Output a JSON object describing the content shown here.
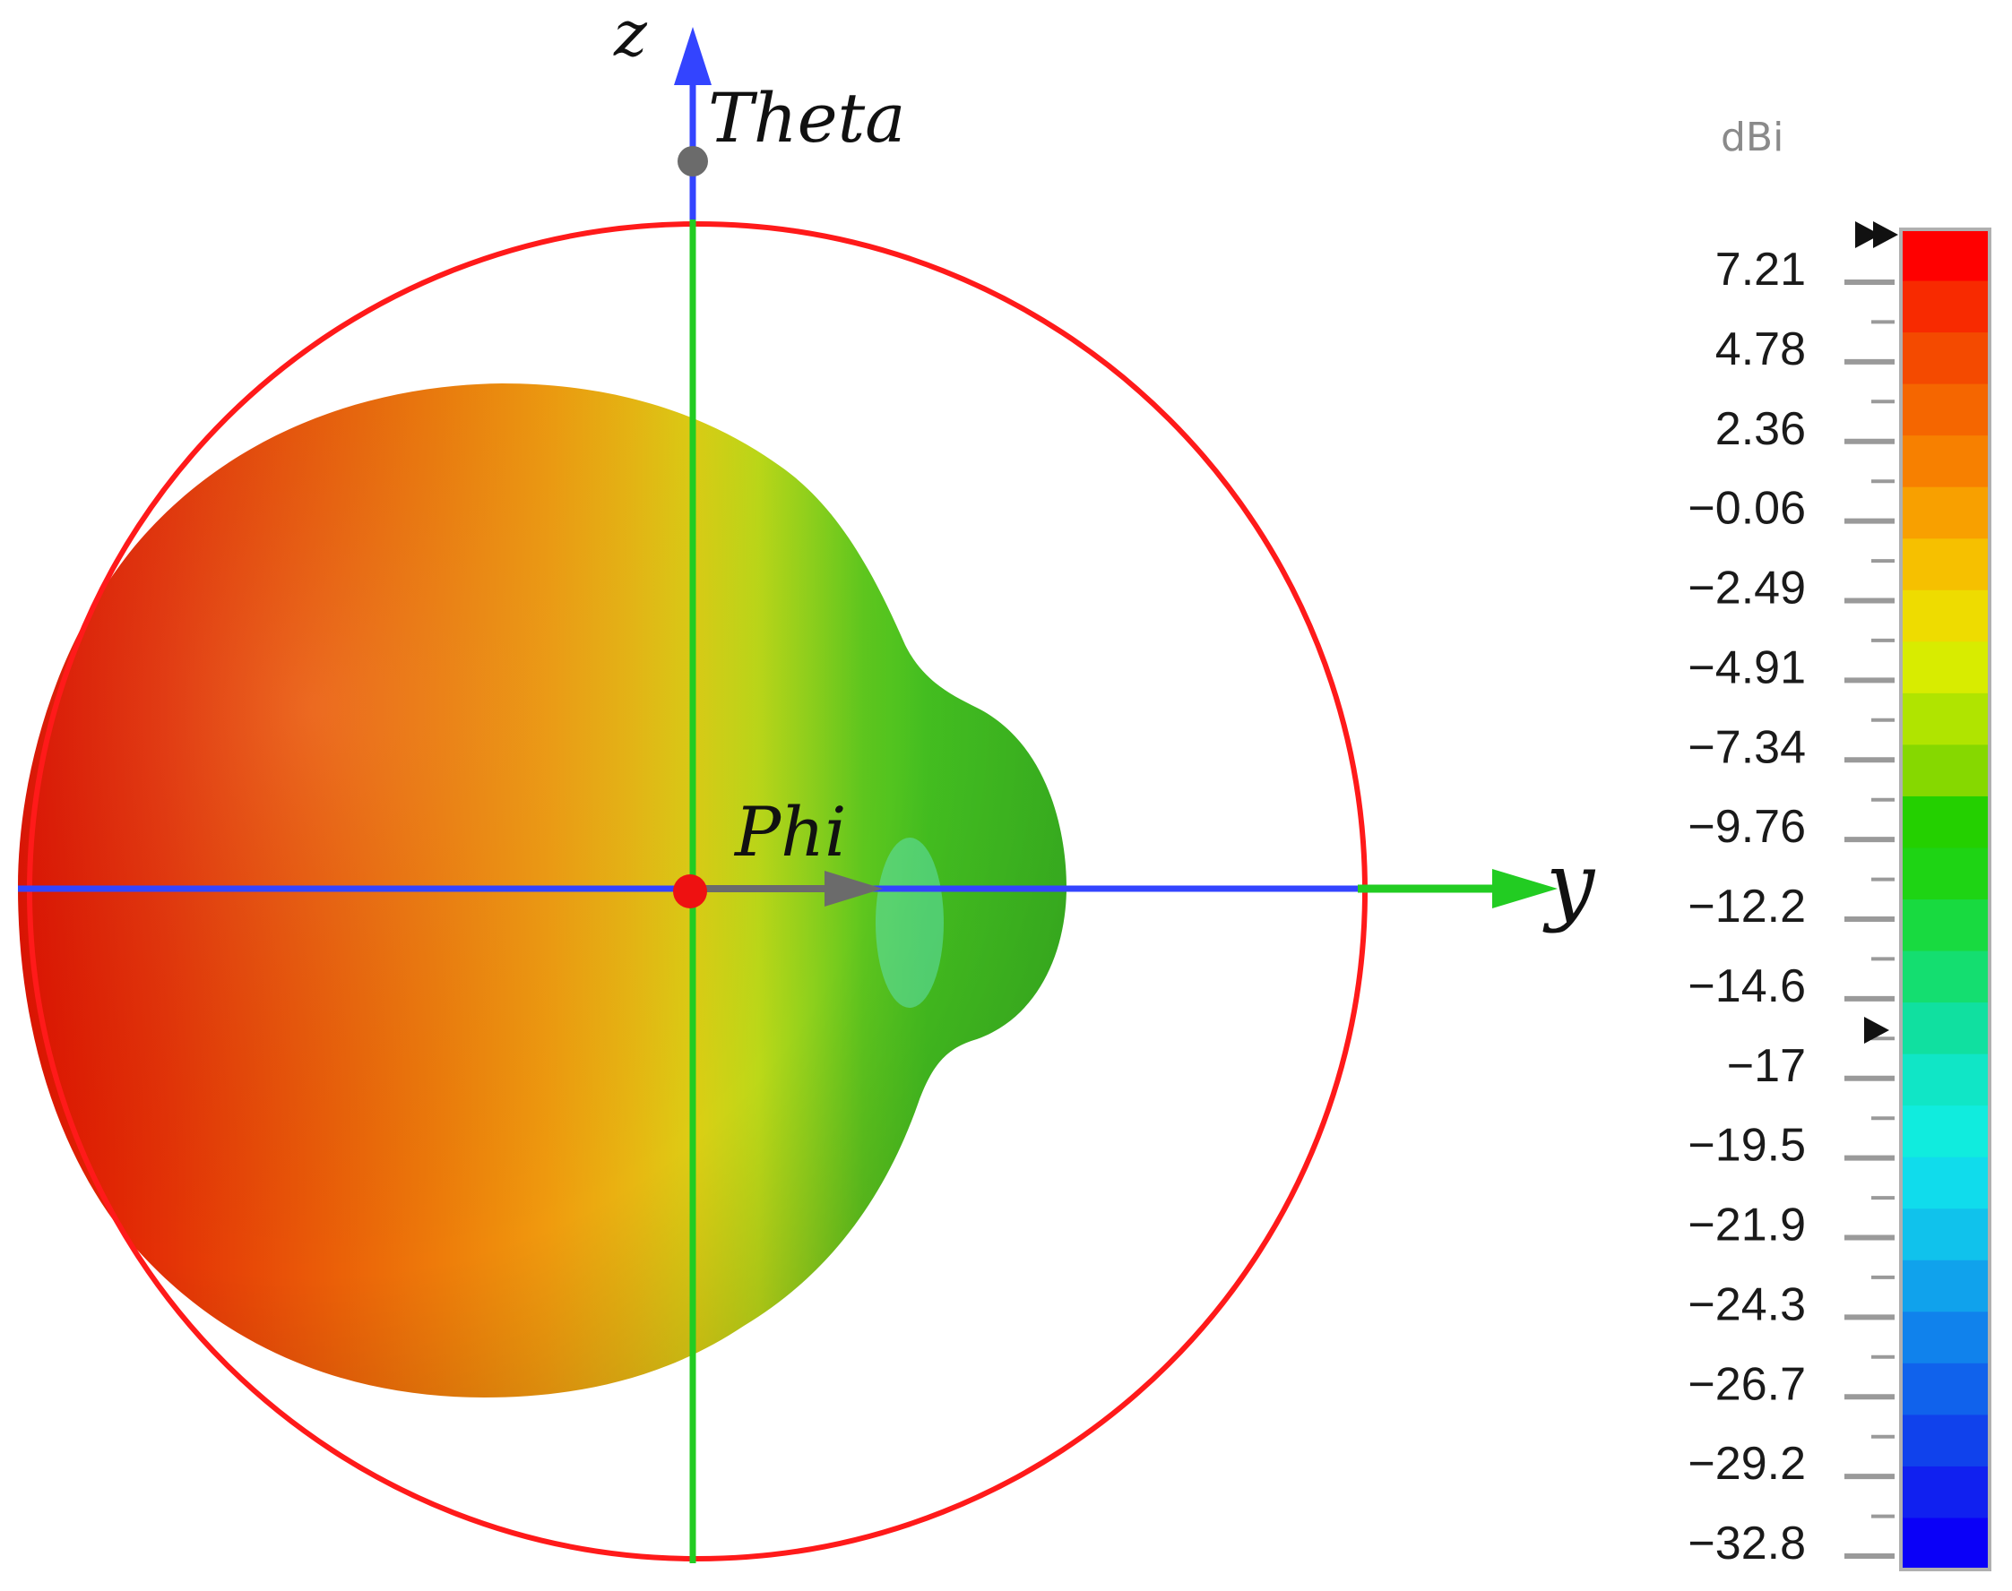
{
  "axes": {
    "z_label": "z",
    "y_label": "y",
    "theta_label": "Theta",
    "phi_label": "Phi"
  },
  "colorbar": {
    "unit": "dBi",
    "ticks": [
      "7.21",
      "4.78",
      "2.36",
      "−0.06",
      "−2.49",
      "−4.91",
      "−7.34",
      "−9.76",
      "−12.2",
      "−14.6",
      "−17",
      "−19.5",
      "−21.9",
      "−24.3",
      "−26.7",
      "−29.2",
      "−32.8"
    ],
    "colors": [
      "#ff0000",
      "#f82a00",
      "#f44a00",
      "#f56600",
      "#f78000",
      "#f8a000",
      "#f6c000",
      "#eedc00",
      "#d8ec00",
      "#b0e400",
      "#86d800",
      "#24d000",
      "#1ed414",
      "#18da40",
      "#14de70",
      "#10e0a0",
      "#10e6c6",
      "#10ecde",
      "#10dcec",
      "#10c2ec",
      "#10a2ec",
      "#1082ec",
      "#1062ec",
      "#1042ec",
      "#1020f0",
      "#0a00f8"
    ]
  },
  "colors": {
    "z_axis": "#3344ff",
    "y_axis": "#3344ff",
    "green_axis": "#22cc22",
    "circle": "#ff1a1a",
    "center_dot": "#ee1111"
  }
}
